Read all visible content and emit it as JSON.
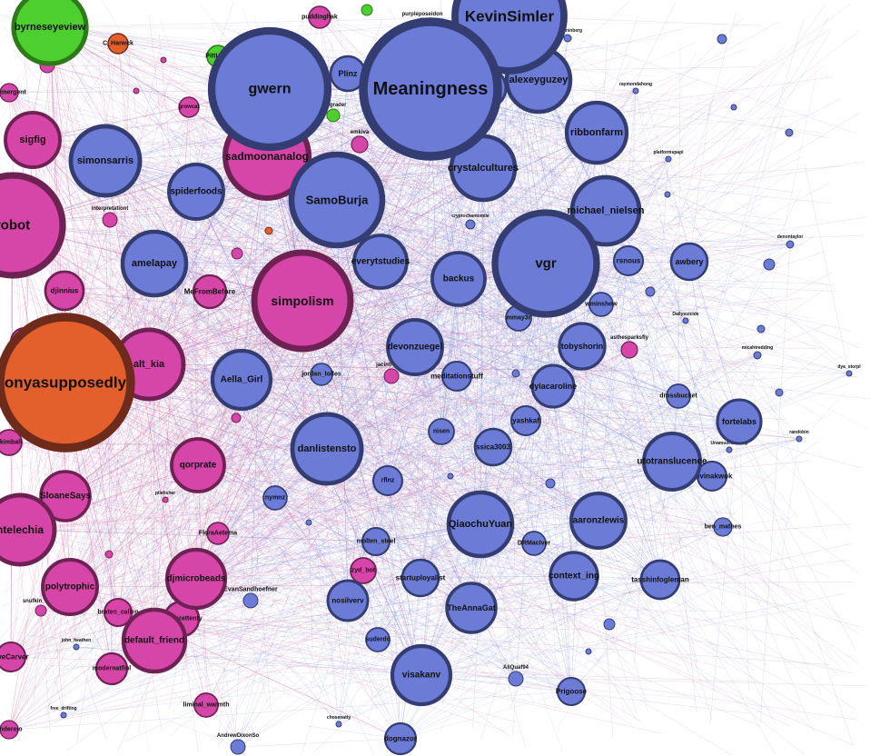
{
  "palette": {
    "blue": {
      "fill": "#6b7bd6",
      "stroke": "#343d72"
    },
    "pink": {
      "fill": "#d645a8",
      "stroke": "#6e2254"
    },
    "green": {
      "fill": "#4ccf2f",
      "stroke": "#2c7a18"
    },
    "orange": {
      "fill": "#e35f2c",
      "stroke": "#6e2a1a"
    },
    "edgeColors": [
      "#d24aa8",
      "#6b7bd6",
      "#c34a6e",
      "#9aa0c8",
      "#e0a0c8"
    ]
  },
  "nodes": [
    {
      "label": "KevinSimler",
      "group": "blue"
    },
    {
      "label": "Meaningness",
      "group": "blue"
    },
    {
      "label": "gwern",
      "group": "blue"
    },
    {
      "label": "vgr",
      "group": "blue"
    },
    {
      "label": "SamoBurja",
      "group": "blue"
    },
    {
      "label": "alexeyguzey",
      "group": "blue"
    },
    {
      "label": "ribbonfarm",
      "group": "blue"
    },
    {
      "label": "crystalcultures",
      "group": "blue"
    },
    {
      "label": "michael_nielsen",
      "group": "blue"
    },
    {
      "label": "simonsarris",
      "group": "blue"
    },
    {
      "label": "spiderfoods",
      "group": "blue"
    },
    {
      "label": "amelapay",
      "group": "blue"
    },
    {
      "label": "everytstudies",
      "group": "blue"
    },
    {
      "label": "backus",
      "group": "blue"
    },
    {
      "label": "devonzuegel",
      "group": "blue"
    },
    {
      "label": "Aella_Girl",
      "group": "blue"
    },
    {
      "label": "danlistensto",
      "group": "blue"
    },
    {
      "label": "QiaochuYuan",
      "group": "blue"
    },
    {
      "label": "aaronzlewis",
      "group": "blue"
    },
    {
      "label": "visakanv",
      "group": "blue"
    },
    {
      "label": "utotranslucence",
      "group": "blue"
    },
    {
      "label": "fortelabs",
      "group": "blue"
    },
    {
      "label": "context_ing",
      "group": "blue"
    },
    {
      "label": "tobyshorin",
      "group": "blue"
    },
    {
      "label": "dyiacaroline",
      "group": "blue"
    },
    {
      "label": "awbery",
      "group": "blue"
    },
    {
      "label": "Plinz",
      "group": "blue"
    },
    {
      "label": "lsnape",
      "group": "blue"
    },
    {
      "label": "rsnous",
      "group": "blue"
    },
    {
      "label": "meditationstuff",
      "group": "blue"
    },
    {
      "label": "yashkaf",
      "group": "blue"
    },
    {
      "label": "ssica3003",
      "group": "blue"
    },
    {
      "label": "TheAnnaGat",
      "group": "blue"
    },
    {
      "label": "startuployalist",
      "group": "blue"
    },
    {
      "label": "nosilverv",
      "group": "blue"
    },
    {
      "label": "tasshinfogleman",
      "group": "blue"
    },
    {
      "label": "kevinakwok",
      "group": "blue"
    },
    {
      "label": "ben_mathes",
      "group": "blue"
    },
    {
      "label": "Prigoose",
      "group": "blue"
    },
    {
      "label": "dognazor",
      "group": "blue"
    },
    {
      "label": "mmay3r",
      "group": "blue"
    },
    {
      "label": "wminshew",
      "group": "blue"
    },
    {
      "label": "drossbucket",
      "group": "blue"
    },
    {
      "label": "molten_steel",
      "group": "blue"
    },
    {
      "label": "rflnz",
      "group": "blue"
    },
    {
      "label": "nisen",
      "group": "blue"
    },
    {
      "label": "nymnz",
      "group": "blue"
    },
    {
      "label": "DRMacIver",
      "group": "blue"
    },
    {
      "label": "EvanSandhoefner",
      "group": "blue"
    },
    {
      "label": "suderdc",
      "group": "blue"
    },
    {
      "label": "jordan_tolles",
      "group": "blue"
    },
    {
      "label": "AliQuaf94",
      "group": "blue"
    },
    {
      "label": "AndrewDixonSo",
      "group": "blue"
    },
    {
      "label": "sadmoonanalog",
      "group": "pink"
    },
    {
      "label": "simpolism",
      "group": "pink"
    },
    {
      "label": "alt_kia",
      "group": "pink"
    },
    {
      "label": "sigfig",
      "group": "pink"
    },
    {
      "label": "robot",
      "group": "pink"
    },
    {
      "label": "qorprate",
      "group": "pink"
    },
    {
      "label": "djmicrobeads",
      "group": "pink"
    },
    {
      "label": "default_friend",
      "group": "pink"
    },
    {
      "label": "polytrophic",
      "group": "pink"
    },
    {
      "label": "SloaneSays",
      "group": "pink"
    },
    {
      "label": "ntelechia",
      "group": "pink"
    },
    {
      "label": "djinnius",
      "group": "pink"
    },
    {
      "label": "MeFromBefore",
      "group": "pink"
    },
    {
      "label": "stroyn",
      "group": "pink"
    },
    {
      "label": "similarattenty",
      "group": "pink"
    },
    {
      "label": "modernatfinl",
      "group": "pink"
    },
    {
      "label": "braten_callen",
      "group": "pink"
    },
    {
      "label": "liminal_warmth",
      "group": "pink"
    },
    {
      "label": "FloraAetema",
      "group": "pink"
    },
    {
      "label": "ykimball",
      "group": "pink"
    },
    {
      "label": "oveCarver",
      "group": "pink"
    },
    {
      "label": "anderejo",
      "group": "pink"
    },
    {
      "label": "puddinghak",
      "group": "pink"
    },
    {
      "label": "zyd_bot",
      "group": "pink"
    },
    {
      "label": "jacinthethet",
      "group": "pink"
    },
    {
      "label": "onyasupposedly",
      "group": "orange"
    },
    {
      "label": "C_Harwck",
      "group": "orange"
    },
    {
      "label": "byrneseyeview",
      "group": "green"
    },
    {
      "label": "PittLabs",
      "group": "green"
    },
    {
      "label": "pellgrader",
      "group": "green"
    },
    {
      "label": "purpleposeidon",
      "group": "pink"
    },
    {
      "label": "raymondahong",
      "group": "blue"
    },
    {
      "label": "platformspapi",
      "group": "blue"
    },
    {
      "label": "denontaylor",
      "group": "blue"
    },
    {
      "label": "micahtredding",
      "group": "blue"
    },
    {
      "label": "UnamusedChimp",
      "group": "blue"
    },
    {
      "label": "randobin",
      "group": "blue"
    },
    {
      "label": "dya_storpl",
      "group": "blue"
    },
    {
      "label": "patterninberg",
      "group": "blue"
    },
    {
      "label": "cryptochamomile",
      "group": "blue"
    },
    {
      "label": "Dailysuicide",
      "group": "blue"
    },
    {
      "label": "asthesparksfly",
      "group": "pink"
    },
    {
      "label": "interpretationt",
      "group": "pink"
    },
    {
      "label": "pilehsher",
      "group": "pink"
    },
    {
      "label": "emkiva",
      "group": "pink"
    },
    {
      "label": "growcat",
      "group": "pink"
    },
    {
      "label": "gniconed",
      "group": "pink"
    },
    {
      "label": "stemergent",
      "group": "pink"
    },
    {
      "label": "snufkin_smus",
      "group": "pink"
    },
    {
      "label": "chosenatty",
      "group": "blue"
    },
    {
      "label": "john_heathen",
      "group": "blue"
    },
    {
      "label": "free_drifting",
      "group": "blue"
    }
  ]
}
